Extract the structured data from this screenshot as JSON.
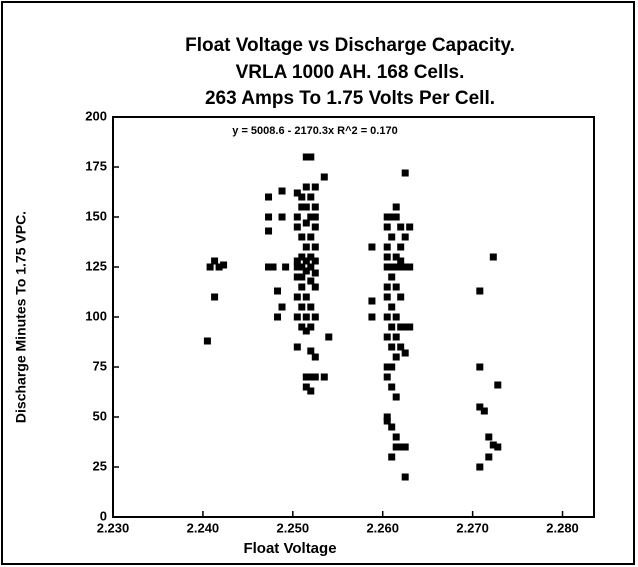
{
  "chart_data": {
    "type": "scatter",
    "title": [
      "Float Voltage vs Discharge Capacity.",
      "VRLA 1000 AH. 168 Cells.",
      "263 Amps To 1.75 Volts Per Cell."
    ],
    "annotation": "y = 5008.6 - 2170.3x   R^2 = 0.170",
    "xlabel": "Float Voltage",
    "ylabel": "Discharge Minutes To 1.75 VPC.",
    "color": "#000000",
    "xlim": [
      2.23,
      2.2835
    ],
    "ylim": [
      0,
      200
    ],
    "xticks": [
      {
        "value": 2.23,
        "label": "2.230"
      },
      {
        "value": 2.24,
        "label": "2.240"
      },
      {
        "value": 2.25,
        "label": "2.250"
      },
      {
        "value": 2.26,
        "label": "2.260"
      },
      {
        "value": 2.27,
        "label": "2.270"
      },
      {
        "value": 2.28,
        "label": "2.280"
      }
    ],
    "yticks": [
      0,
      25,
      50,
      75,
      100,
      125,
      150,
      175,
      200
    ],
    "x": [
      2.2405,
      2.2408,
      2.2413,
      2.2418,
      2.2413,
      2.2423,
      2.2473,
      2.2473,
      2.2473,
      2.2473,
      2.2478,
      2.2483,
      2.2483,
      2.2488,
      2.2488,
      2.2488,
      2.2492,
      2.2505,
      2.2505,
      2.2505,
      2.2505,
      2.2505,
      2.2505,
      2.2505,
      2.2505,
      2.2505,
      2.251,
      2.251,
      2.251,
      2.251,
      2.251,
      2.251,
      2.251,
      2.251,
      2.251,
      2.2515,
      2.2515,
      2.2515,
      2.2515,
      2.2515,
      2.2515,
      2.2515,
      2.2515,
      2.2515,
      2.2515,
      2.2515,
      2.2515,
      2.252,
      2.252,
      2.252,
      2.252,
      2.252,
      2.252,
      2.252,
      2.252,
      2.252,
      2.252,
      2.252,
      2.252,
      2.2525,
      2.2525,
      2.2525,
      2.2525,
      2.2525,
      2.2525,
      2.2525,
      2.2525,
      2.2525,
      2.2525,
      2.2525,
      2.2535,
      2.2535,
      2.254,
      2.2588,
      2.2588,
      2.2588,
      2.2605,
      2.2605,
      2.2605,
      2.2605,
      2.2605,
      2.2605,
      2.2605,
      2.2605,
      2.2605,
      2.2605,
      2.2605,
      2.2605,
      2.2605,
      2.261,
      2.261,
      2.261,
      2.261,
      2.261,
      2.261,
      2.261,
      2.261,
      2.261,
      2.261,
      2.261,
      2.2615,
      2.2615,
      2.2615,
      2.2615,
      2.2615,
      2.2615,
      2.2615,
      2.2615,
      2.2615,
      2.2615,
      2.2615,
      2.262,
      2.262,
      2.262,
      2.262,
      2.262,
      2.262,
      2.262,
      2.262,
      2.2625,
      2.2625,
      2.2625,
      2.2625,
      2.2625,
      2.2625,
      2.2625,
      2.263,
      2.263,
      2.263,
      2.2708,
      2.2708,
      2.2708,
      2.2708,
      2.2713,
      2.2718,
      2.2718,
      2.2723,
      2.2723,
      2.2728,
      2.2728
    ],
    "values": [
      88,
      125,
      128,
      125,
      110,
      126,
      160,
      150,
      143,
      125,
      125,
      113,
      100,
      105,
      163,
      150,
      125,
      162,
      150,
      145,
      128,
      125,
      120,
      110,
      100,
      85,
      160,
      155,
      140,
      130,
      125,
      120,
      115,
      105,
      95,
      180,
      165,
      155,
      147,
      135,
      128,
      123,
      110,
      100,
      93,
      70,
      65,
      180,
      160,
      150,
      140,
      130,
      125,
      118,
      105,
      95,
      83,
      70,
      63,
      165,
      155,
      150,
      145,
      135,
      128,
      122,
      115,
      100,
      80,
      70,
      170,
      70,
      90,
      135,
      108,
      100,
      150,
      145,
      135,
      130,
      125,
      115,
      110,
      100,
      90,
      75,
      70,
      50,
      48,
      150,
      140,
      125,
      120,
      105,
      95,
      85,
      75,
      65,
      45,
      30,
      155,
      150,
      130,
      125,
      115,
      100,
      90,
      80,
      60,
      40,
      35,
      145,
      135,
      128,
      125,
      110,
      95,
      85,
      35,
      172,
      140,
      125,
      95,
      82,
      35,
      20,
      145,
      125,
      95,
      113,
      75,
      55,
      25,
      53,
      40,
      30,
      130,
      36,
      66,
      35
    ]
  }
}
